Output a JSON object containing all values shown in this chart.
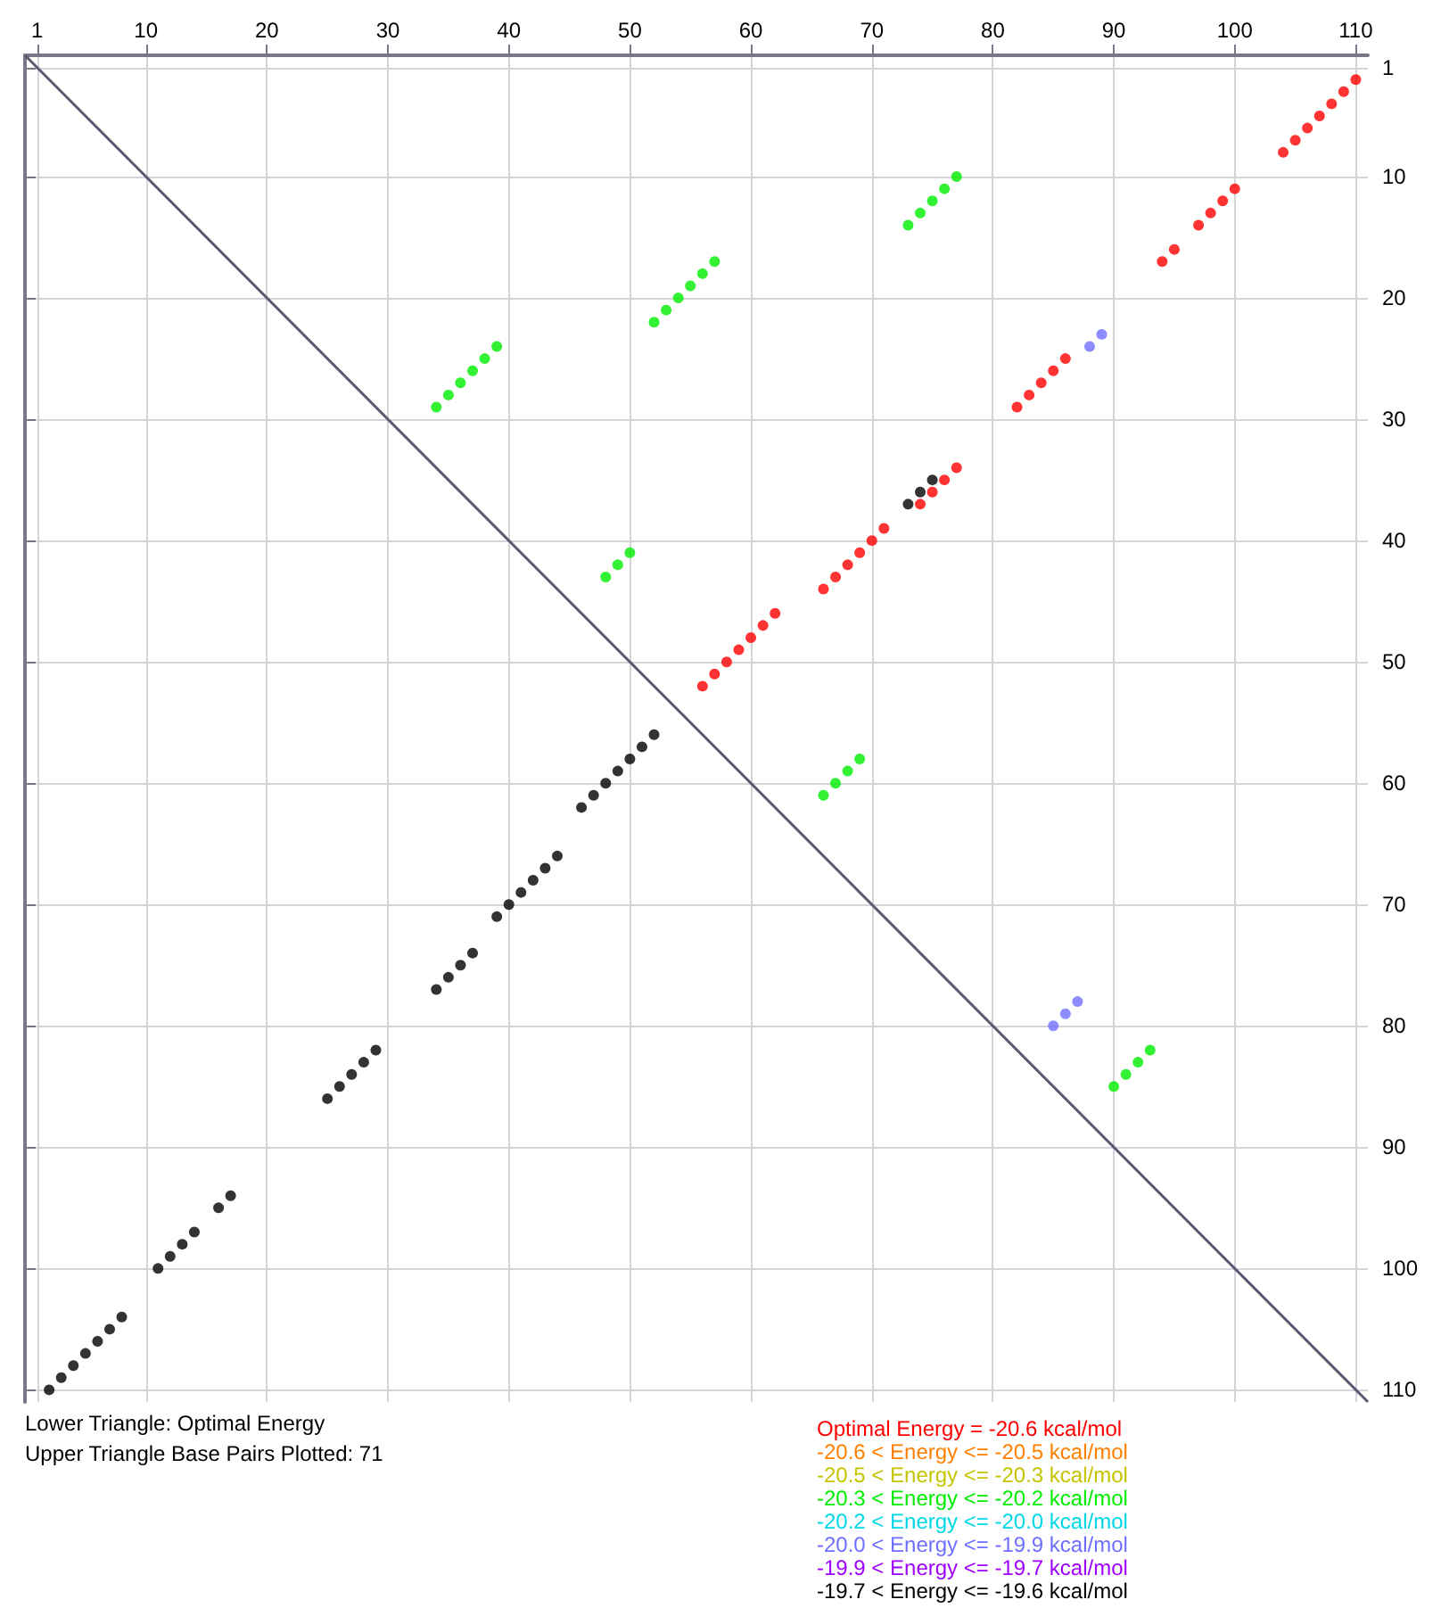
{
  "chart_data": {
    "type": "scatter",
    "xlim": [
      0,
      111
    ],
    "ylim": [
      111,
      0
    ],
    "xticks": [
      1,
      10,
      20,
      30,
      40,
      50,
      60,
      70,
      80,
      90,
      100,
      110
    ],
    "yticks": [
      1,
      10,
      20,
      30,
      40,
      50,
      60,
      70,
      80,
      90,
      100,
      110
    ],
    "grid": true,
    "legend": "bottom right",
    "marker": "circle",
    "annotations": [
      "Lower Triangle: Optimal Energy",
      "Upper Triangle Base Pairs Plotted: 71"
    ],
    "series": [
      {
        "name": "Optimal Energy = -20.6 kcal/mol",
        "color": "#ff0000",
        "x": [
          110,
          109,
          108,
          107,
          106,
          105,
          104,
          100,
          99,
          98,
          97,
          95,
          94,
          86,
          85,
          84,
          83,
          82,
          77,
          76,
          75,
          74,
          71,
          70,
          69,
          68,
          67,
          66,
          62,
          61,
          60,
          59,
          58,
          57,
          56
        ],
        "values": [
          2,
          3,
          4,
          5,
          6,
          7,
          8,
          11,
          12,
          13,
          14,
          16,
          17,
          25,
          26,
          27,
          28,
          29,
          34,
          35,
          36,
          37,
          39,
          40,
          41,
          42,
          43,
          44,
          46,
          47,
          48,
          49,
          50,
          51,
          52
        ]
      },
      {
        "name": "-20.6 < Energy <= -20.5 kcal/mol",
        "color": "#ff8000"
      },
      {
        "name": "-20.5 < Energy <= -20.3 kcal/mol",
        "color": "#c4c400"
      },
      {
        "name": "-20.3 < Energy <= -20.2 kcal/mol",
        "color": "#00ee00",
        "x": [
          77,
          76,
          75,
          74,
          73,
          57,
          56,
          55,
          54,
          53,
          52,
          39,
          38,
          37,
          36,
          35,
          34,
          50,
          49,
          48,
          69,
          68,
          67,
          66,
          93,
          92,
          91,
          90
        ],
        "values": [
          10,
          11,
          12,
          13,
          14,
          17,
          18,
          19,
          20,
          21,
          22,
          24,
          25,
          26,
          27,
          28,
          29,
          41,
          42,
          43,
          58,
          59,
          60,
          61,
          82,
          83,
          84,
          85
        ]
      },
      {
        "name": "-20.2 < Energy <= -20.0 kcal/mol",
        "color": "#00d8e8"
      },
      {
        "name": "-20.0 < Energy <= -19.9 kcal/mol",
        "color": "#6f6fff",
        "x": [
          89,
          88,
          87,
          86,
          85
        ],
        "values": [
          23,
          24,
          78,
          79,
          80
        ]
      },
      {
        "name": "-19.9 < Energy <= -19.7 kcal/mol",
        "color": "#a000ff"
      },
      {
        "name": "-19.7 < Energy <= -19.6 kcal/mol",
        "color": "#000000",
        "x": [
          75,
          74,
          73
        ],
        "values": [
          35,
          36,
          37
        ]
      },
      {
        "color": "#000000",
        "x": [
          2,
          3,
          4,
          5,
          6,
          7,
          8,
          11,
          12,
          13,
          14,
          16,
          17,
          25,
          26,
          27,
          28,
          29,
          34,
          35,
          36,
          37,
          39,
          40,
          41,
          42,
          43,
          44,
          46,
          47,
          48,
          49,
          50,
          51,
          52
        ],
        "values": [
          110,
          109,
          108,
          107,
          106,
          105,
          104,
          100,
          99,
          98,
          97,
          95,
          94,
          86,
          85,
          84,
          83,
          82,
          77,
          76,
          75,
          74,
          71,
          70,
          69,
          68,
          67,
          66,
          62,
          61,
          60,
          59,
          58,
          57,
          56
        ]
      },
      {
        "type": "line",
        "color": "#5a5a6e",
        "marker": "none",
        "x": [
          0,
          111
        ],
        "values": [
          0,
          111
        ]
      }
    ]
  }
}
